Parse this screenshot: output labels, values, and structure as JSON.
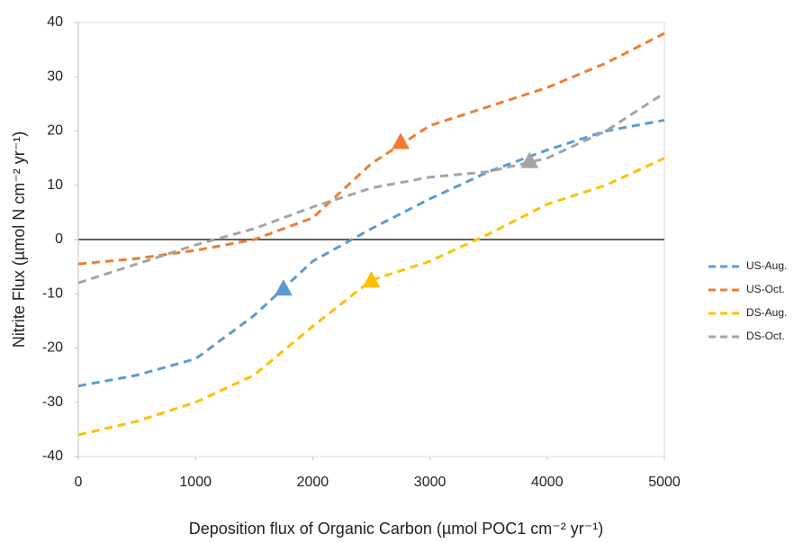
{
  "chart_data": {
    "type": "line",
    "x": [
      0,
      500,
      1000,
      1500,
      2000,
      2500,
      3000,
      3500,
      4000,
      4500,
      5000
    ],
    "series": [
      {
        "name": "US-Aug.",
        "color": "#5b9bd5",
        "values": [
          -27,
          -25,
          -22,
          -14,
          -4,
          2,
          7.5,
          12.5,
          16.5,
          20,
          22
        ],
        "marker": {
          "x": 1750,
          "y": -9
        }
      },
      {
        "name": "US-Oct.",
        "color": "#ed7d31",
        "values": [
          -4.5,
          -3.5,
          -2,
          0,
          4,
          14,
          21,
          24.5,
          28,
          32.5,
          38
        ],
        "marker": {
          "x": 2750,
          "y": 18
        }
      },
      {
        "name": "DS-Aug.",
        "color": "#ffc000",
        "values": [
          -36,
          -33.5,
          -30,
          -25,
          -16,
          -7.5,
          -4,
          1,
          6.5,
          10,
          15
        ],
        "marker": {
          "x": 2500,
          "y": -7.5
        }
      },
      {
        "name": "DS-Oct.",
        "color": "#a5a5a5",
        "values": [
          -8,
          -4.5,
          -1,
          2,
          6,
          9.5,
          11.5,
          12.5,
          15,
          20,
          27
        ],
        "marker": {
          "x": 3850,
          "y": 14.5
        }
      }
    ],
    "xlabel": "Deposition flux of Organic Carbon (µmol POC1 cm⁻² yr⁻¹)",
    "ylabel": "Nitrite Flux (µmol N cm⁻² yr⁻¹)",
    "xlim": [
      0,
      5000
    ],
    "xticks": [
      0,
      1000,
      2000,
      3000,
      4000,
      5000
    ],
    "ylim": [
      -40,
      40
    ],
    "yticks": [
      -40,
      -30,
      -20,
      -10,
      0,
      10,
      20,
      30,
      40
    ],
    "legend": "right"
  }
}
